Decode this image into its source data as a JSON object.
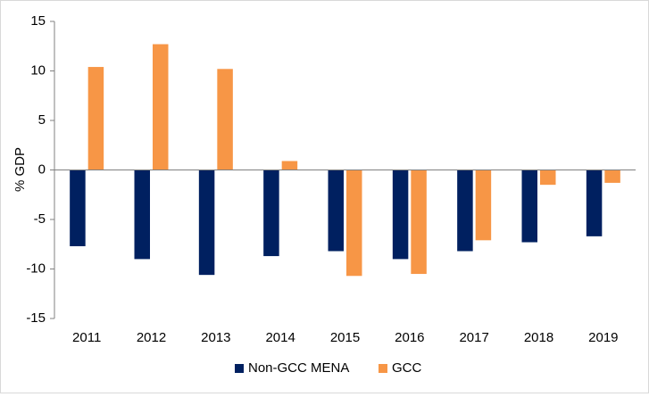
{
  "chart_data": {
    "type": "bar",
    "title": "",
    "xlabel": "",
    "ylabel": "% GDP",
    "ylim": [
      -15,
      15
    ],
    "yticks": [
      15,
      10,
      5,
      0,
      -5,
      -10,
      -15
    ],
    "grid": false,
    "legend_position": "bottom",
    "categories": [
      "2011",
      "2012",
      "2013",
      "2014",
      "2015",
      "2016",
      "2017",
      "2018",
      "2019"
    ],
    "series": [
      {
        "name": "Non-GCC MENA",
        "color": "#002060",
        "values": [
          -7.7,
          -9.0,
          -10.6,
          -8.7,
          -8.2,
          -9.0,
          -8.2,
          -7.3,
          -6.7
        ]
      },
      {
        "name": "GCC",
        "color": "#F79646",
        "values": [
          10.4,
          12.7,
          10.2,
          0.9,
          -10.7,
          -10.5,
          -7.1,
          -1.5,
          -1.3
        ]
      }
    ]
  }
}
